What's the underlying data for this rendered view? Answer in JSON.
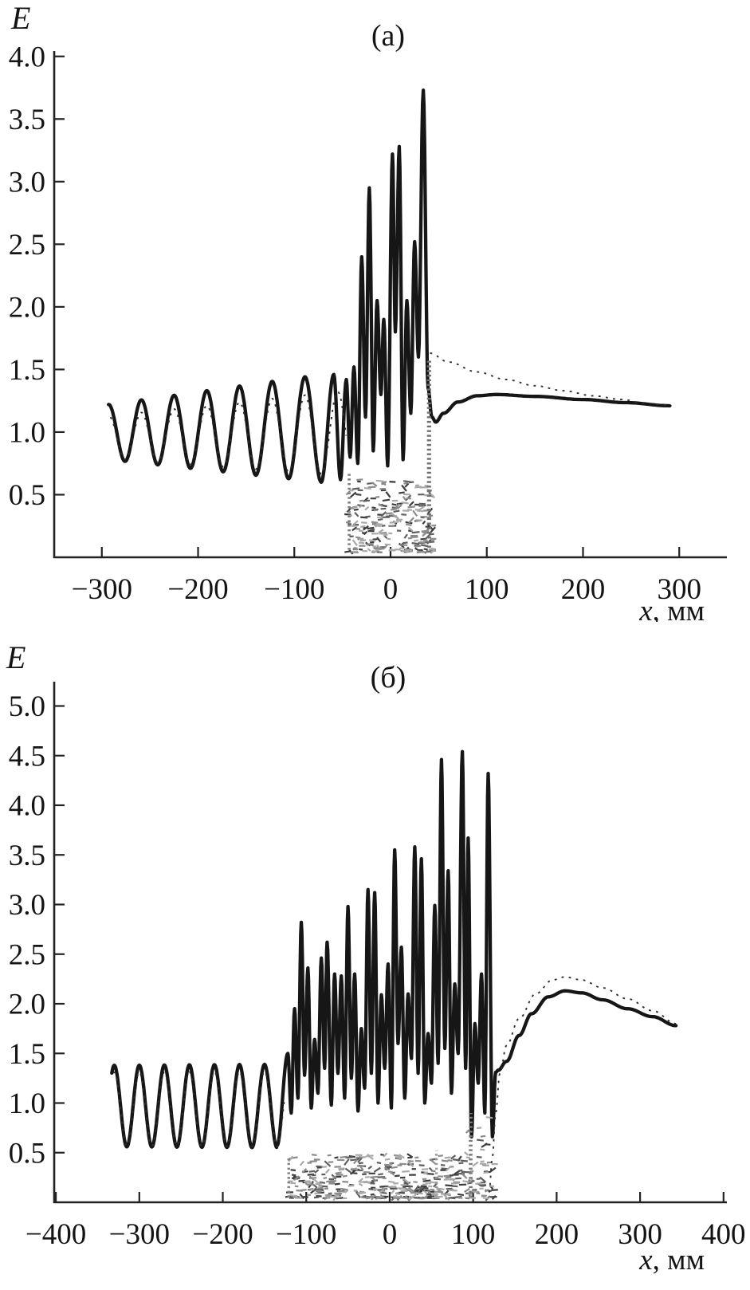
{
  "figure_name": "field-amplitude-distribution",
  "chart_data": [
    {
      "id": "a",
      "type": "line",
      "title": "(а)",
      "ylabel": "E",
      "xlabel_var": "x",
      "xlabel_unit": ", мм",
      "xlim": [
        -349.5,
        349.5
      ],
      "ylim": [
        0,
        4.043
      ],
      "x_ticks": [
        -300,
        -200,
        -100,
        0,
        100,
        200,
        300
      ],
      "y_ticks": [
        0.5,
        1.0,
        1.5,
        2.0,
        2.5,
        3.0,
        3.5,
        4.0
      ],
      "grid": false,
      "legend": "none",
      "series": [
        {
          "name": "solid-curve",
          "style": "solid",
          "segments": [
            {
              "type": "sinusoid",
              "x0": -293,
              "x1": -72,
              "period": 34,
              "trough_x": -276,
              "mean0": 1.0,
              "mean1": 1.03,
              "amp0": 0.22,
              "amp1": 0.43
            },
            {
              "type": "extrema",
              "points": [
                [
                  -72,
                  0.6
                ],
                [
                  -59,
                  1.46
                ],
                [
                  -52,
                  0.62
                ],
                [
                  -46,
                  1.42
                ],
                [
                  -42,
                  0.8
                ],
                [
                  -38,
                  1.52
                ],
                [
                  -34,
                  0.75
                ],
                [
                  -30,
                  2.4
                ],
                [
                  -26,
                  1.12
                ],
                [
                  -22,
                  2.95
                ],
                [
                  -18,
                  0.85
                ],
                [
                  -14,
                  2.05
                ],
                [
                  -10,
                  1.3
                ],
                [
                  -7,
                  1.9
                ],
                [
                  -3,
                  0.73
                ],
                [
                  2,
                  3.22
                ],
                [
                  5,
                  1.8
                ],
                [
                  9,
                  3.28
                ],
                [
                  13,
                  0.78
                ],
                [
                  17,
                  2.05
                ],
                [
                  21,
                  1.15
                ],
                [
                  25,
                  2.52
                ],
                [
                  29,
                  1.6
                ],
                [
                  34,
                  3.73
                ],
                [
                  39,
                  1.35
                ],
                [
                  43,
                  1.12
                ],
                [
                  47,
                  1.08
                ]
              ]
            },
            {
              "type": "smooth",
              "points": [
                [
                  47,
                  1.08
                ],
                [
                  55,
                  1.15
                ],
                [
                  70,
                  1.24
                ],
                [
                  90,
                  1.29
                ],
                [
                  110,
                  1.3
                ],
                [
                  150,
                  1.285
                ],
                [
                  200,
                  1.26
                ],
                [
                  245,
                  1.235
                ],
                [
                  290,
                  1.21
                ]
              ]
            }
          ]
        },
        {
          "name": "dotted-curve",
          "style": "dotted",
          "segments": [
            {
              "type": "sinusoid",
              "x0": -291,
              "x1": -46,
              "period": 34,
              "trough_x": -276,
              "mean0": 0.96,
              "mean1": 0.99,
              "amp0": 0.17,
              "amp1": 0.34
            },
            {
              "type": "scatter",
              "x0": -45,
              "x1": 45,
              "y0": 0.04,
              "y1": 0.62,
              "count": 250,
              "seed": 11
            },
            {
              "type": "vline",
              "x": -43,
              "y0": 0.06,
              "y1": 0.68,
              "w": 3.6,
              "color": "#7d7d7d"
            },
            {
              "type": "vline",
              "x": 40,
              "y0": 0.04,
              "y1": 1.58,
              "w": 5.2,
              "color": "#6f6f6f"
            },
            {
              "type": "smooth",
              "points": [
                [
                  41,
                  1.63
                ],
                [
                  60,
                  1.56
                ],
                [
                  90,
                  1.48
                ],
                [
                  120,
                  1.42
                ],
                [
                  150,
                  1.37
                ],
                [
                  180,
                  1.33
                ],
                [
                  210,
                  1.29
                ],
                [
                  240,
                  1.26
                ],
                [
                  265,
                  1.23
                ],
                [
                  292,
                  1.21
                ]
              ]
            }
          ]
        }
      ]
    },
    {
      "id": "b",
      "type": "line",
      "title": "(б)",
      "ylabel": "E",
      "xlabel_var": "x",
      "xlabel_unit": ", мм",
      "xlim": [
        -402,
        404
      ],
      "ylim": [
        0,
        5.245
      ],
      "x_ticks": [
        -400,
        -300,
        -200,
        -100,
        0,
        100,
        200,
        300,
        400
      ],
      "y_ticks": [
        0.5,
        1.0,
        1.5,
        2.0,
        2.5,
        3.0,
        3.5,
        4.0,
        4.5,
        5.0
      ],
      "grid": false,
      "legend": "none",
      "series": [
        {
          "name": "solid-curve",
          "style": "solid",
          "segments": [
            {
              "type": "sinusoid",
              "x0": -333,
              "x1": -135,
              "period": 30,
              "trough_x": -315,
              "mean0": 0.97,
              "mean1": 0.97,
              "amp0": 0.41,
              "amp1": 0.42
            },
            {
              "type": "extrema",
              "points": [
                [
                  -135,
                  0.57
                ],
                [
                  -122,
                  1.5
                ],
                [
                  -118,
                  0.9
                ],
                [
                  -114,
                  1.95
                ],
                [
                  -110,
                  1.05
                ],
                [
                  -106,
                  2.82
                ],
                [
                  -102,
                  1.28
                ],
                [
                  -98,
                  2.36
                ],
                [
                  -94,
                  0.95
                ],
                [
                  -90,
                  1.64
                ],
                [
                  -86,
                  1.1
                ],
                [
                  -82,
                  2.46
                ],
                [
                  -78,
                  1.35
                ],
                [
                  -75,
                  2.62
                ],
                [
                  -70,
                  0.98
                ],
                [
                  -66,
                  2.3
                ],
                [
                  -62,
                  1.3
                ],
                [
                  -58,
                  2.28
                ],
                [
                  -54,
                  1.05
                ],
                [
                  -50,
                  2.98
                ],
                [
                  -46,
                  1.25
                ],
                [
                  -42,
                  2.3
                ],
                [
                  -38,
                  0.92
                ],
                [
                  -34,
                  1.75
                ],
                [
                  -30,
                  1.15
                ],
                [
                  -26,
                  3.15
                ],
                [
                  -22,
                  1.3
                ],
                [
                  -18,
                  3.12
                ],
                [
                  -14,
                  1.0
                ],
                [
                  -10,
                  2.09
                ],
                [
                  -6,
                  1.35
                ],
                [
                  -2,
                  2.4
                ],
                [
                  2,
                  0.95
                ],
                [
                  6,
                  3.55
                ],
                [
                  10,
                  1.6
                ],
                [
                  14,
                  2.57
                ],
                [
                  18,
                  1.05
                ],
                [
                  22,
                  2.1
                ],
                [
                  26,
                  1.45
                ],
                [
                  30,
                  3.58
                ],
                [
                  34,
                  1.3
                ],
                [
                  38,
                  3.46
                ],
                [
                  42,
                  1.0
                ],
                [
                  46,
                  1.7
                ],
                [
                  50,
                  1.2
                ],
                [
                  54,
                  2.99
                ],
                [
                  58,
                  1.4
                ],
                [
                  62,
                  4.46
                ],
                [
                  66,
                  1.55
                ],
                [
                  70,
                  3.34
                ],
                [
                  74,
                  1.1
                ],
                [
                  78,
                  2.2
                ],
                [
                  82,
                  1.5
                ],
                [
                  87,
                  4.54
                ],
                [
                  91,
                  1.35
                ],
                [
                  94,
                  3.67
                ],
                [
                  98,
                  0.66
                ],
                [
                  102,
                  1.8
                ],
                [
                  106,
                  1.2
                ],
                [
                  110,
                  2.3
                ],
                [
                  114,
                  0.9
                ],
                [
                  118,
                  4.32
                ],
                [
                  123,
                  0.66
                ],
                [
                  127,
                  1.31
                ],
                [
                  130,
                  1.33
                ]
              ]
            },
            {
              "type": "smooth",
              "points": [
                [
                  130,
                  1.33
                ],
                [
                  140,
                  1.42
                ],
                [
                  155,
                  1.68
                ],
                [
                  170,
                  1.9
                ],
                [
                  190,
                  2.07
                ],
                [
                  210,
                  2.13
                ],
                [
                  230,
                  2.11
                ],
                [
                  255,
                  2.04
                ],
                [
                  285,
                  1.95
                ],
                [
                  315,
                  1.87
                ],
                [
                  343,
                  1.78
                ]
              ]
            }
          ]
        },
        {
          "name": "dotted-curve",
          "style": "dotted",
          "segments": [
            {
              "type": "sinusoid",
              "x0": -331,
              "x1": -126,
              "period": 30,
              "trough_x": -315,
              "mean0": 0.94,
              "mean1": 0.94,
              "amp0": 0.37,
              "amp1": 0.38
            },
            {
              "type": "scatter",
              "x0": -121,
              "x1": 126,
              "y0": 0.04,
              "y1": 0.48,
              "count": 430,
              "seed": 5,
              "boost_from": 55,
              "boost_max": 0.95
            },
            {
              "type": "vline",
              "x": -121,
              "y0": 0.05,
              "y1": 0.46,
              "w": 3.4,
              "color": "#828282"
            },
            {
              "type": "vline",
              "x": 56,
              "y0": 0.05,
              "y1": 0.52,
              "w": 3.4,
              "color": "#9a9a9a"
            },
            {
              "type": "vline",
              "x": 97,
              "y0": 0.05,
              "y1": 0.9,
              "w": 4.6,
              "color": "#7a7a7a"
            },
            {
              "type": "smooth",
              "points": [
                [
                  119,
                  0.1
                ],
                [
                  123,
                  0.45
                ],
                [
                  127,
                  0.9
                ],
                [
                  132,
                  1.3
                ],
                [
                  140,
                  1.58
                ],
                [
                  155,
                  1.85
                ],
                [
                  175,
                  2.1
                ],
                [
                  195,
                  2.24
                ],
                [
                  210,
                  2.27
                ],
                [
                  230,
                  2.24
                ],
                [
                  255,
                  2.16
                ],
                [
                  285,
                  2.05
                ],
                [
                  315,
                  1.93
                ],
                [
                  343,
                  1.8
                ]
              ]
            }
          ]
        }
      ]
    }
  ]
}
